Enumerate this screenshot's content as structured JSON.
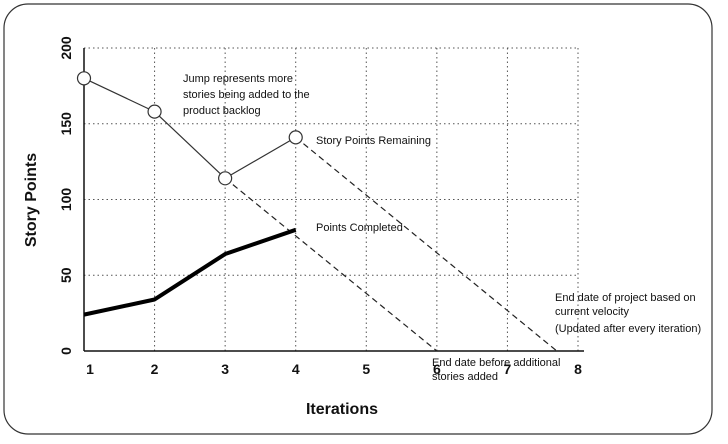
{
  "chart_data": {
    "type": "line",
    "title": "",
    "xlabel": "Iterations",
    "ylabel": "Story Points",
    "xlim": [
      1,
      8
    ],
    "ylim": [
      0,
      200
    ],
    "x_ticks": [
      "1",
      "2",
      "3",
      "4",
      "5",
      "6",
      "7",
      "8"
    ],
    "y_ticks": [
      "0",
      "50",
      "100",
      "150",
      "200"
    ],
    "grid": true,
    "series": [
      {
        "name": "Story Points Remaining",
        "style": "thin line with hollow circle markers",
        "color": "#333333",
        "x": [
          1,
          2,
          3,
          4
        ],
        "y": [
          180,
          158,
          114,
          141
        ]
      },
      {
        "name": "Points Completed",
        "style": "thick line",
        "color": "#000000",
        "x": [
          1,
          2,
          3,
          4
        ],
        "y": [
          24,
          34,
          64,
          80
        ]
      }
    ],
    "projections": [
      {
        "style": "dashed",
        "x": [
          3,
          6
        ],
        "y": [
          114,
          0
        ],
        "label": "End date before additional stories added"
      },
      {
        "style": "dashed",
        "x": [
          4,
          7.7
        ],
        "y": [
          141,
          0
        ],
        "label": "End date of project based on current velocity (Updated after every iteration)"
      }
    ],
    "annotations": [
      {
        "lines": [
          "Jump represents more",
          "stories being added to the",
          "product backlog"
        ]
      },
      {
        "lines": [
          "Story Points Remaining"
        ]
      },
      {
        "lines": [
          "Points Completed"
        ]
      },
      {
        "lines": [
          "End date of project based on",
          "current velocity",
          "(Updated after every iteration)"
        ]
      },
      {
        "lines": [
          "End date before additional",
          "stories added"
        ]
      }
    ]
  }
}
